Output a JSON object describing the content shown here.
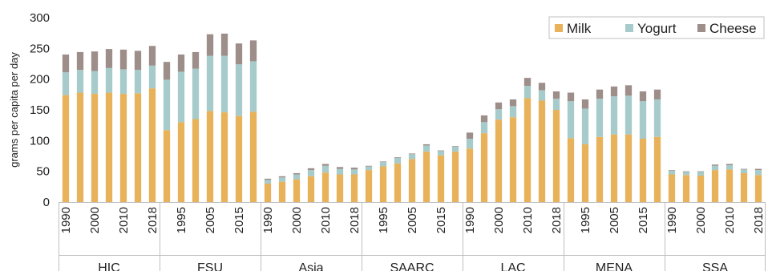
{
  "chart_data": {
    "type": "bar",
    "stacked": true,
    "ylabel": "grams per capita per day",
    "ylim": [
      0,
      300
    ],
    "yticks": [
      0,
      50,
      100,
      150,
      200,
      250,
      300
    ],
    "legend_position": "top-right",
    "colors": {
      "Milk": "#e8b25a",
      "Yogurt": "#a7cbcb",
      "Cheese": "#9d8e8a"
    },
    "groups": [
      {
        "name": "HIC",
        "years": [
          "1990",
          "1995",
          "2000",
          "2005",
          "2010",
          "2015",
          "2018"
        ],
        "tick_labels": [
          "1990",
          "",
          "2000",
          "",
          "2010",
          "",
          "2018"
        ],
        "milk": [
          174,
          178,
          176,
          178,
          176,
          177,
          185
        ],
        "yogurt": [
          37,
          37,
          37,
          40,
          40,
          38,
          37
        ],
        "cheese": [
          29,
          29,
          32,
          31,
          32,
          31,
          32
        ]
      },
      {
        "name": "FSU",
        "years": [
          "1992",
          "1995",
          "2000",
          "2005",
          "2010",
          "2015",
          "2018"
        ],
        "tick_labels": [
          "",
          "1995",
          "",
          "2005",
          "",
          "2015",
          ""
        ],
        "milk": [
          117,
          130,
          135,
          148,
          146,
          140,
          147
        ],
        "yogurt": [
          82,
          82,
          82,
          90,
          92,
          84,
          82
        ],
        "cheese": [
          29,
          28,
          27,
          35,
          36,
          34,
          34
        ]
      },
      {
        "name": "Asia",
        "years": [
          "1990",
          "1995",
          "2000",
          "2005",
          "2010",
          "2015",
          "2018"
        ],
        "tick_labels": [
          "1990",
          "",
          "2000",
          "",
          "2010",
          "",
          "2018"
        ],
        "milk": [
          30,
          33,
          37,
          42,
          48,
          45,
          45
        ],
        "yogurt": [
          6,
          7,
          8,
          10,
          11,
          9,
          8
        ],
        "cheese": [
          2,
          2,
          2,
          3,
          3,
          3,
          3
        ]
      },
      {
        "name": "SAARC",
        "years": [
          "1990",
          "1995",
          "2000",
          "2005",
          "2010",
          "2015",
          "2018"
        ],
        "tick_labels": [
          "",
          "1995",
          "",
          "2005",
          "",
          "2015",
          ""
        ],
        "milk": [
          52,
          58,
          63,
          70,
          82,
          76,
          82
        ],
        "yogurt": [
          6,
          7,
          9,
          8,
          10,
          7,
          8
        ],
        "cheese": [
          1,
          1,
          1,
          1,
          2,
          1,
          1
        ]
      },
      {
        "name": "LAC",
        "years": [
          "1990",
          "1995",
          "2000",
          "2005",
          "2010",
          "2015",
          "2018"
        ],
        "tick_labels": [
          "1990",
          "",
          "2000",
          "",
          "2010",
          "",
          "2018"
        ],
        "milk": [
          87,
          112,
          134,
          138,
          169,
          165,
          150
        ],
        "yogurt": [
          16,
          18,
          17,
          18,
          20,
          17,
          18
        ],
        "cheese": [
          10,
          11,
          11,
          11,
          13,
          12,
          12
        ]
      },
      {
        "name": "MENA",
        "years": [
          "1990",
          "1995",
          "2000",
          "2005",
          "2010",
          "2015",
          "2018"
        ],
        "tick_labels": [
          "",
          "1995",
          "",
          "2005",
          "",
          "2015",
          ""
        ],
        "milk": [
          104,
          94,
          106,
          110,
          110,
          103,
          106
        ],
        "yogurt": [
          60,
          58,
          62,
          62,
          63,
          61,
          61
        ],
        "cheese": [
          14,
          15,
          15,
          16,
          17,
          16,
          16
        ]
      },
      {
        "name": "SSA",
        "years": [
          "1990",
          "1995",
          "2000",
          "2005",
          "2010",
          "2015",
          "2018"
        ],
        "tick_labels": [
          "1990",
          "",
          "2000",
          "",
          "2010",
          "",
          "2018"
        ],
        "milk": [
          45,
          44,
          43,
          52,
          53,
          47,
          44
        ],
        "yogurt": [
          6,
          5,
          6,
          7,
          7,
          6,
          8
        ],
        "cheese": [
          1,
          1,
          1,
          2,
          2,
          1,
          2
        ]
      }
    ],
    "series": [
      {
        "name": "Milk",
        "key": "milk"
      },
      {
        "name": "Yogurt",
        "key": "yogurt"
      },
      {
        "name": "Cheese",
        "key": "cheese"
      }
    ]
  }
}
